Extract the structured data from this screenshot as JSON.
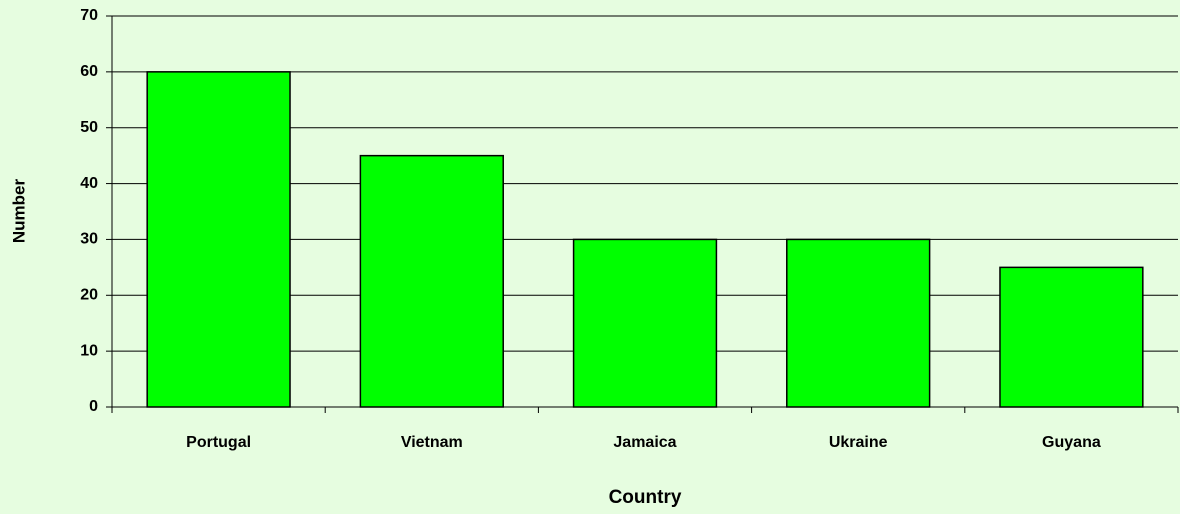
{
  "chart_data": {
    "type": "bar",
    "categories": [
      "Portugal",
      "Vietnam",
      "Jamaica",
      "Ukraine",
      "Guyana"
    ],
    "values": [
      60,
      45,
      30,
      30,
      25
    ],
    "color": "#00ff00",
    "xlabel": "Country",
    "ylabel": "Number",
    "ylim": [
      0,
      70
    ],
    "yticks": [
      0,
      10,
      20,
      30,
      40,
      50,
      60,
      70
    ],
    "grid": true
  }
}
